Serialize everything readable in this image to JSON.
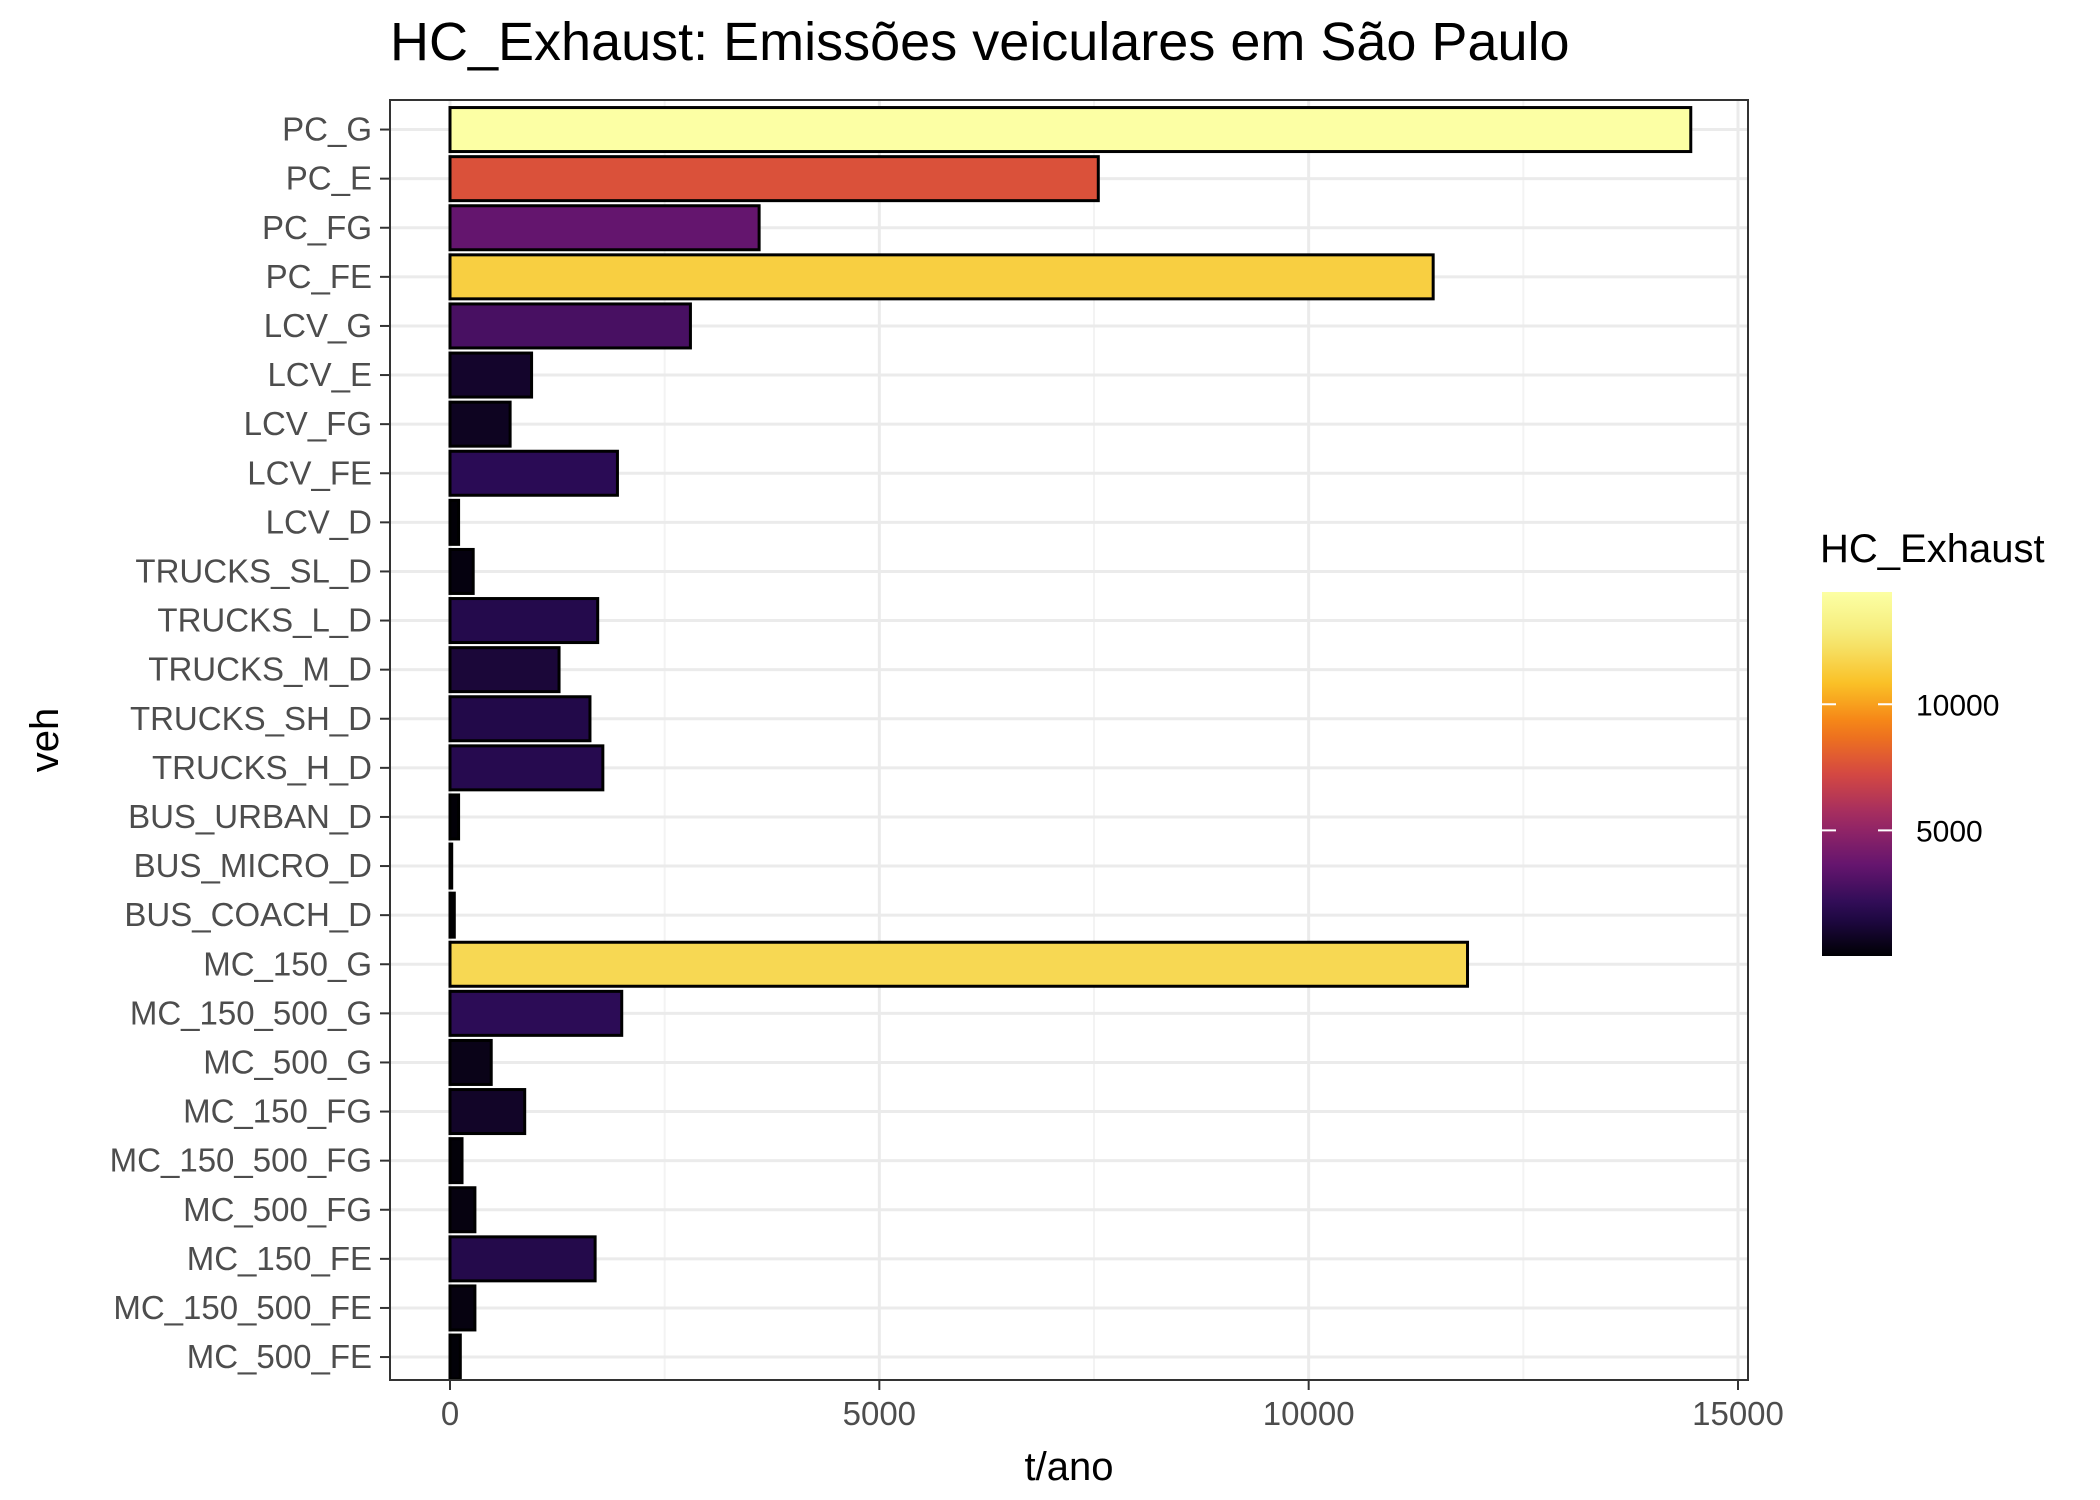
{
  "chart_data": {
    "type": "bar",
    "orientation": "horizontal",
    "title": "HC_Exhaust: Emissões veiculares em São Paulo",
    "xlabel": "t/ano",
    "ylabel": "veh",
    "xlim": [
      0,
      15000
    ],
    "xticks": [
      0,
      5000,
      10000,
      15000
    ],
    "grid": true,
    "categories": [
      "PC_G",
      "PC_E",
      "PC_FG",
      "PC_FE",
      "LCV_G",
      "LCV_E",
      "LCV_FG",
      "LCV_FE",
      "LCV_D",
      "TRUCKS_SL_D",
      "TRUCKS_L_D",
      "TRUCKS_M_D",
      "TRUCKS_SH_D",
      "TRUCKS_H_D",
      "BUS_URBAN_D",
      "BUS_MICRO_D",
      "BUS_COACH_D",
      "MC_150_G",
      "MC_150_500_G",
      "MC_500_G",
      "MC_150_FG",
      "MC_150_500_FG",
      "MC_500_FG",
      "MC_150_FE",
      "MC_150_500_FE",
      "MC_500_FE"
    ],
    "values": [
      14450,
      7550,
      3600,
      11450,
      2800,
      950,
      700,
      1950,
      100,
      270,
      1720,
      1270,
      1630,
      1780,
      100,
      20,
      50,
      11850,
      2000,
      480,
      870,
      140,
      290,
      1690,
      290,
      120
    ],
    "fill_scale": "inferno",
    "fill_range": [
      20,
      14450
    ],
    "legend": {
      "title": "HC_Exhaust",
      "position": "right",
      "ticks": [
        5000,
        10000
      ]
    }
  }
}
